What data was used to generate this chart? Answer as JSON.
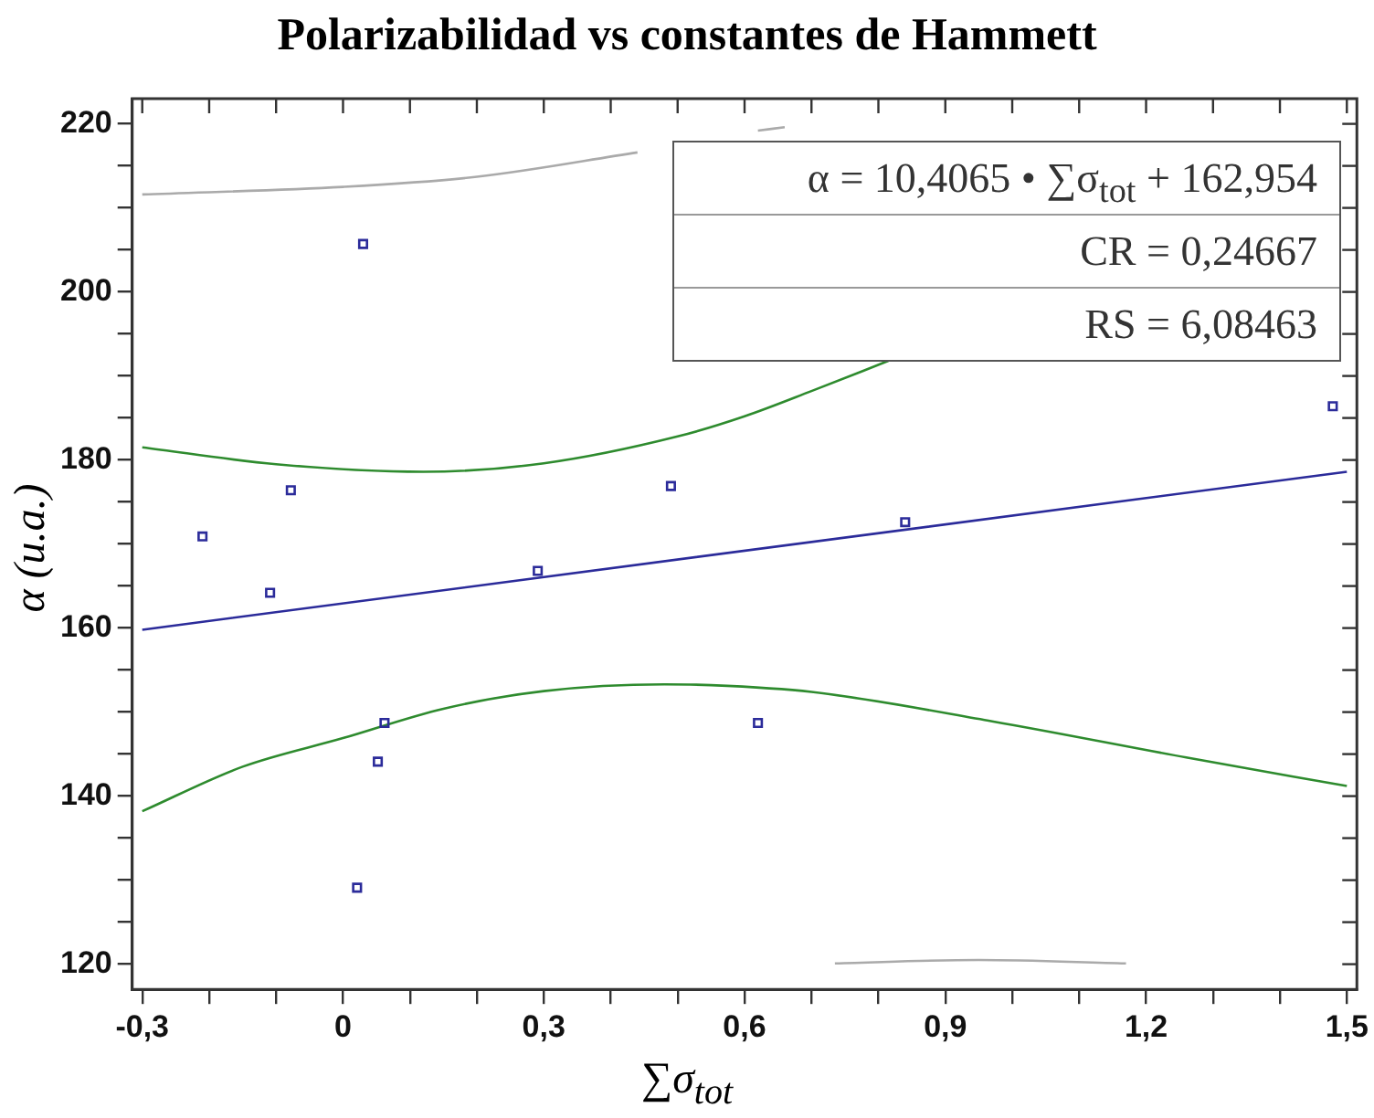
{
  "chart_data": {
    "type": "scatter",
    "title": "Polarizabilidad vs constantes de Hammett",
    "xlabel": "∑σ$_{tot}$",
    "ylabel": "α (u.a.)",
    "xlim": [
      -0.315,
      1.515
    ],
    "ylim": [
      117,
      223
    ],
    "xticks": [
      {
        "value": -0.3,
        "label": "-0,3"
      },
      {
        "value": -0.2,
        "label": null
      },
      {
        "value": -0.1,
        "label": null
      },
      {
        "value": 0,
        "label": "0"
      },
      {
        "value": 0.1,
        "label": null
      },
      {
        "value": 0.2,
        "label": null
      },
      {
        "value": 0.3,
        "label": "0,3"
      },
      {
        "value": 0.4,
        "label": null
      },
      {
        "value": 0.5,
        "label": null
      },
      {
        "value": 0.6,
        "label": "0,6"
      },
      {
        "value": 0.7,
        "label": null
      },
      {
        "value": 0.8,
        "label": null
      },
      {
        "value": 0.9,
        "label": "0,9"
      },
      {
        "value": 1.0,
        "label": null
      },
      {
        "value": 1.1,
        "label": null
      },
      {
        "value": 1.2,
        "label": "1,2"
      },
      {
        "value": 1.3,
        "label": null
      },
      {
        "value": 1.4,
        "label": null
      },
      {
        "value": 1.5,
        "label": "1,5"
      }
    ],
    "yticks": [
      120,
      {
        "value": 125,
        "label": null
      },
      {
        "value": 130,
        "label": null
      },
      {
        "value": 135,
        "label": null
      },
      140,
      {
        "value": 145,
        "label": null
      },
      {
        "value": 150,
        "label": null
      },
      {
        "value": 155,
        "label": null
      },
      160,
      {
        "value": 165,
        "label": null
      },
      {
        "value": 170,
        "label": null
      },
      {
        "value": 175,
        "label": null
      },
      180,
      {
        "value": 185,
        "label": null
      },
      {
        "value": 190,
        "label": null
      },
      {
        "value": 195,
        "label": null
      },
      200,
      {
        "value": 205,
        "label": null
      },
      {
        "value": 210,
        "label": null
      },
      {
        "value": 215,
        "label": null
      },
      220
    ],
    "grid": false,
    "legend": false,
    "annotations": [
      "α = 10,4065 • ∑σ$_{tot}$ + 162,954",
      "CR = 0,24667",
      "RS = 6,08463"
    ],
    "series": [
      {
        "marker": "square",
        "color": "#2b2b9a",
        "x": [
          -0.21,
          -0.109,
          -0.078,
          0.03,
          0.021,
          0.052,
          0.062,
          0.291,
          0.49,
          0.62,
          0.84,
          1.479
        ],
        "values": [
          170.9,
          164.2,
          176.4,
          205.7,
          129.1,
          144.1,
          148.7,
          166.8,
          176.9,
          148.7,
          172.6,
          186.4
        ]
      },
      {
        "type": "line",
        "color": "#2b2b9a",
        "x": [
          -0.3,
          1.5
        ],
        "values": [
          159.8,
          178.6
        ]
      },
      {
        "type": "line",
        "color": "#2e8b2e",
        "x": [
          -0.3,
          -0.1,
          0.12,
          0.3,
          0.5,
          0.6,
          0.7,
          0.815
        ],
        "values": [
          181.5,
          179.5,
          178.6,
          179.6,
          182.8,
          185.2,
          188.2,
          191.8
        ]
      },
      {
        "type": "line",
        "color": "#2e8b2e",
        "x": [
          -0.3,
          -0.15,
          0,
          0.15,
          0.3,
          0.48,
          0.55,
          0.7,
          0.97,
          1.26,
          1.5
        ],
        "values": [
          138.2,
          143.5,
          146.9,
          150.4,
          152.5,
          153.3,
          153.2,
          152.4,
          148.9,
          144.6,
          141.2
        ]
      },
      {
        "type": "line",
        "color": "#aaaaaa",
        "x": [
          -0.3,
          0,
          0.2,
          0.44
        ],
        "values": [
          211.6,
          212.5,
          213.7,
          216.6
        ]
      },
      {
        "type": "line",
        "color": "#aaaaaa",
        "x": [
          0.62,
          0.66
        ],
        "values": [
          219.2,
          219.6
        ]
      },
      {
        "type": "line",
        "color": "#aaaaaa",
        "x": [
          0.735,
          0.95,
          1.17
        ],
        "values": [
          120.1,
          120.5,
          120.1
        ]
      }
    ]
  }
}
